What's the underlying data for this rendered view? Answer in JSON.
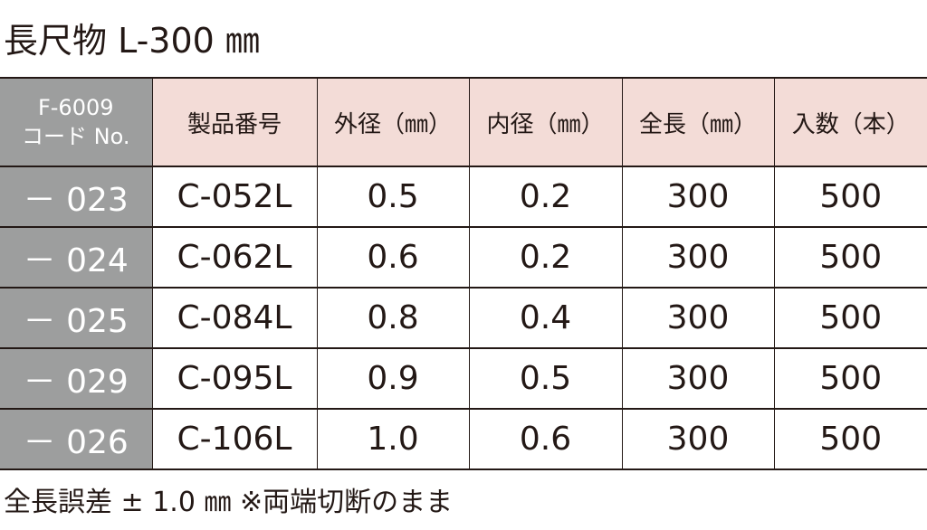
{
  "title": "長尺物 L-300 ㎜",
  "table": {
    "header": [
      [
        "F-6009",
        "コード No."
      ],
      "製品番号",
      "外径（㎜）",
      "内径（㎜）",
      "全長（㎜）",
      "入数（本）"
    ],
    "rows": [
      [
        "－ 023",
        "C-052L",
        "0.5",
        "0.2",
        "300",
        "500"
      ],
      [
        "－ 024",
        "C-062L",
        "0.6",
        "0.2",
        "300",
        "500"
      ],
      [
        "－ 025",
        "C-084L",
        "0.8",
        "0.4",
        "300",
        "500"
      ],
      [
        "－ 029",
        "C-095L",
        "0.9",
        "0.5",
        "300",
        "500"
      ],
      [
        "－ 026",
        "C-106L",
        "1.0",
        "0.6",
        "300",
        "500"
      ]
    ]
  },
  "footer": "全長誤差 ± 1.0 ㎜ ※両端切断のまま"
}
